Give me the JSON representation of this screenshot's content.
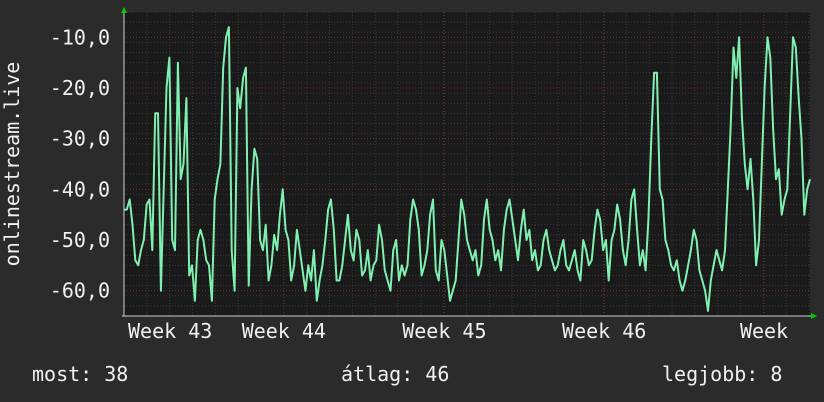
{
  "colors": {
    "background": "#2b2b2b",
    "plot_bg": "#1a1a1a",
    "grid_minor": "#3a3a3a",
    "grid_major": "#6a2e2e",
    "line": "#80f0b0",
    "axis": "#cfcfcf",
    "text": "#f0f0f0",
    "arrow": "#00cc00"
  },
  "chart_data": {
    "type": "line",
    "ylabel": "onlinestream.live",
    "xlabel": "",
    "title": "",
    "ylim": [
      -65,
      -5
    ],
    "xlim": [
      0,
      100
    ],
    "y_ticks": [
      -60,
      -50,
      -40,
      -30,
      -20,
      -10
    ],
    "y_tick_labels": [
      "-60,0",
      "-50,0",
      "-40,0",
      "-30,0",
      "-20,0",
      "-10,0"
    ],
    "x_ticks": [
      0,
      23.3,
      46.7,
      70,
      93.3
    ],
    "x_tick_labels": [
      "Week 43",
      "Week 44",
      "Week 45",
      "Week 46",
      "Week"
    ],
    "grid": true,
    "series": [
      {
        "values": [
          -44,
          -44,
          -42,
          -47,
          -54,
          -55,
          -52,
          -50,
          -43,
          -42,
          -52,
          -25,
          -25,
          -60,
          -40,
          -20,
          -14,
          -50,
          -52,
          -15,
          -38,
          -35,
          -22,
          -57,
          -55,
          -62,
          -50,
          -48,
          -50,
          -54,
          -55,
          -62,
          -42,
          -38,
          -35,
          -16,
          -10,
          -8,
          -52,
          -60,
          -20,
          -24,
          -18,
          -16,
          -59,
          -40,
          -32,
          -34,
          -50,
          -52,
          -47,
          -58,
          -55,
          -49,
          -52,
          -45,
          -40,
          -48,
          -50,
          -58,
          -55,
          -48,
          -52,
          -56,
          -60,
          -55,
          -58,
          -52,
          -62,
          -58,
          -55,
          -50,
          -44,
          -42,
          -48,
          -58,
          -58,
          -55,
          -50,
          -45,
          -52,
          -54,
          -48,
          -50,
          -57,
          -56,
          -52,
          -58,
          -55,
          -54,
          -47,
          -50,
          -56,
          -58,
          -60,
          -52,
          -50,
          -58,
          -55,
          -57,
          -55,
          -46,
          -42,
          -44,
          -48,
          -57,
          -55,
          -52,
          -45,
          -42,
          -56,
          -58,
          -50,
          -52,
          -57,
          -62,
          -60,
          -58,
          -50,
          -42,
          -45,
          -50,
          -52,
          -54,
          -52,
          -57,
          -55,
          -46,
          -42,
          -48,
          -50,
          -54,
          -52,
          -56,
          -48,
          -44,
          -42,
          -46,
          -50,
          -54,
          -48,
          -44,
          -50,
          -48,
          -54,
          -52,
          -56,
          -55,
          -50,
          -48,
          -52,
          -54,
          -56,
          -55,
          -52,
          -50,
          -55,
          -56,
          -54,
          -52,
          -56,
          -58,
          -50,
          -52,
          -55,
          -54,
          -48,
          -44,
          -46,
          -52,
          -50,
          -58,
          -50,
          -48,
          -43,
          -46,
          -52,
          -55,
          -50,
          -42,
          -40,
          -48,
          -55,
          -52,
          -56,
          -46,
          -30,
          -17,
          -17,
          -40,
          -42,
          -50,
          -52,
          -55,
          -56,
          -54,
          -58,
          -60,
          -58,
          -55,
          -52,
          -48,
          -50,
          -56,
          -58,
          -60,
          -64,
          -58,
          -55,
          -52,
          -54,
          -56,
          -52,
          -40,
          -28,
          -12,
          -18,
          -10,
          -26,
          -35,
          -40,
          -34,
          -42,
          -55,
          -50,
          -35,
          -20,
          -10,
          -14,
          -28,
          -38,
          -36,
          -45,
          -42,
          -40,
          -25,
          -10,
          -12,
          -22,
          -30,
          -45,
          -40,
          -38
        ]
      }
    ]
  },
  "legend": {
    "current": "most: 38",
    "average": "átlag: 46",
    "best": "legjobb: 8"
  }
}
